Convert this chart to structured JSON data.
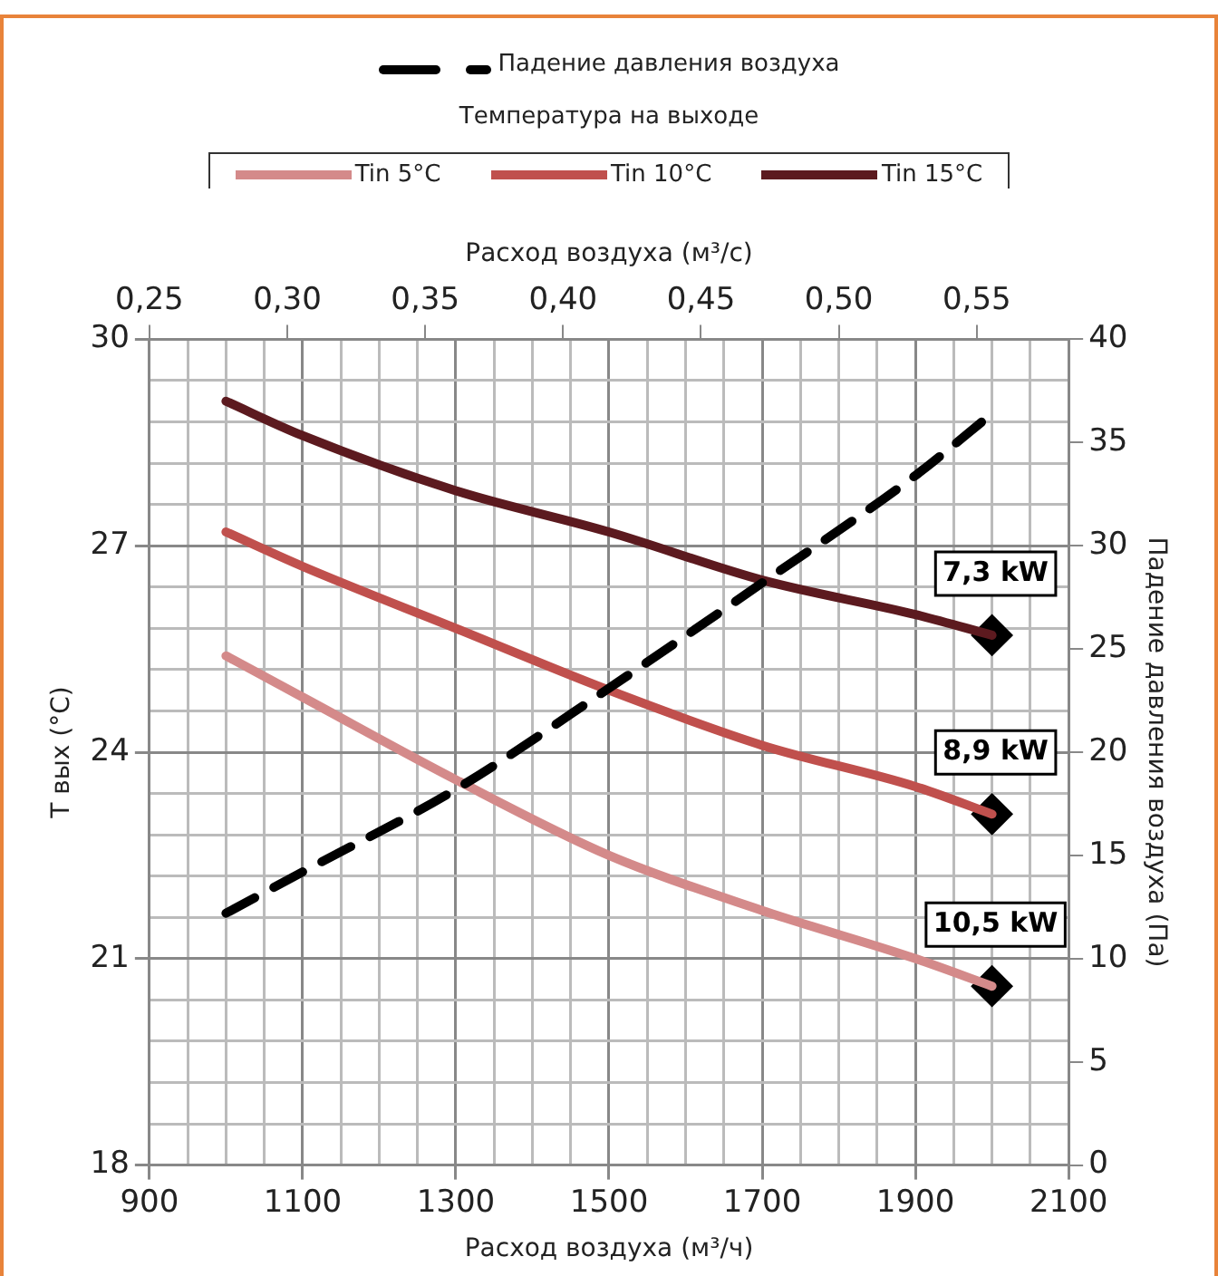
{
  "chart_data": {
    "type": "line",
    "xlabel": "Расход воздуха (м³/ч)",
    "x2label": "Расход воздуха (м³/с)",
    "ylabel": "T вых (°C)",
    "y2label": "Падение давления воздуха (Па)",
    "legend_title": "Температура на выходе",
    "legend": "top",
    "grid": true,
    "line_style": "solid",
    "marker": "none",
    "x": [
      1000,
      1100,
      1300,
      1500,
      1700,
      1900,
      2000
    ],
    "xlim": [
      900,
      2100
    ],
    "xticks": [
      900,
      {
        "value": 950,
        "label": null
      },
      {
        "value": 1000,
        "label": null
      },
      {
        "value": 1050,
        "label": null
      },
      1100,
      {
        "value": 1150,
        "label": null
      },
      {
        "value": 1200,
        "label": null
      },
      {
        "value": 1250,
        "label": null
      },
      1300,
      {
        "value": 1350,
        "label": null
      },
      {
        "value": 1400,
        "label": null
      },
      {
        "value": 1450,
        "label": null
      },
      1500,
      {
        "value": 1550,
        "label": null
      },
      {
        "value": 1600,
        "label": null
      },
      {
        "value": 1650,
        "label": null
      },
      1700,
      {
        "value": 1750,
        "label": null
      },
      {
        "value": 1800,
        "label": null
      },
      {
        "value": 1850,
        "label": null
      },
      1900,
      {
        "value": 1950,
        "label": null
      },
      {
        "value": 2000,
        "label": null
      },
      {
        "value": 2050,
        "label": null
      },
      2100
    ],
    "x2lim": [
      0.25,
      0.5833
    ],
    "x2ticks": [
      {
        "value": 0.25,
        "label": "0,25"
      },
      {
        "value": 0.3,
        "label": "0,30"
      },
      {
        "value": 0.35,
        "label": "0,35"
      },
      {
        "value": 0.4,
        "label": "0,40"
      },
      {
        "value": 0.45,
        "label": "0,45"
      },
      {
        "value": 0.5,
        "label": "0,50"
      },
      {
        "value": 0.55,
        "label": "0,55"
      }
    ],
    "ylim": [
      18,
      30
    ],
    "yticks": [
      18,
      {
        "value": 18.6,
        "label": null
      },
      {
        "value": 19.2,
        "label": null
      },
      {
        "value": 19.8,
        "label": null
      },
      {
        "value": 20.4,
        "label": null
      },
      21,
      {
        "value": 21.6,
        "label": null
      },
      {
        "value": 22.2,
        "label": null
      },
      {
        "value": 22.8,
        "label": null
      },
      {
        "value": 23.4,
        "label": null
      },
      24,
      {
        "value": 24.6,
        "label": null
      },
      {
        "value": 25.2,
        "label": null
      },
      {
        "value": 25.8,
        "label": null
      },
      {
        "value": 26.4,
        "label": null
      },
      27,
      {
        "value": 27.6,
        "label": null
      },
      {
        "value": 28.2,
        "label": null
      },
      {
        "value": 28.8,
        "label": null
      },
      {
        "value": 29.4,
        "label": null
      },
      30
    ],
    "y2lim": [
      0,
      40
    ],
    "y2ticks": [
      0,
      5,
      10,
      15,
      20,
      25,
      30,
      35,
      40
    ],
    "series": [
      {
        "name": "Падение давления воздуха",
        "color": "#000000",
        "axis": "y2",
        "line_style": "dashed",
        "values": [
          12.2,
          14.2,
          18.2,
          23.1,
          28.2,
          33.4,
          36.4
        ]
      },
      {
        "name": "Tin 5°C",
        "color": "#d48a8a",
        "values": [
          25.4,
          24.8,
          23.6,
          22.5,
          21.7,
          21.0,
          20.6
        ]
      },
      {
        "name": "Tin 10°C",
        "color": "#c0504d",
        "values": [
          27.2,
          26.7,
          25.8,
          24.9,
          24.1,
          23.5,
          23.1
        ]
      },
      {
        "name": "Tin 15°C",
        "color": "#5c1a1f",
        "values": [
          29.1,
          28.6,
          27.8,
          27.2,
          26.5,
          26.0,
          25.7
        ]
      },
      {
        "type": "scatter",
        "color": "#000000",
        "marker": "diamond",
        "values": [
          null,
          null,
          null,
          null,
          null,
          null,
          25.7
        ]
      },
      {
        "type": "scatter",
        "color": "#000000",
        "marker": "diamond",
        "values": [
          null,
          null,
          null,
          null,
          null,
          null,
          23.1
        ]
      },
      {
        "type": "scatter",
        "color": "#000000",
        "marker": "diamond",
        "values": [
          null,
          null,
          null,
          null,
          null,
          null,
          20.6
        ]
      }
    ],
    "annotations": [
      "7,3 kW",
      "8,9 kW",
      "10,5 kW"
    ]
  }
}
